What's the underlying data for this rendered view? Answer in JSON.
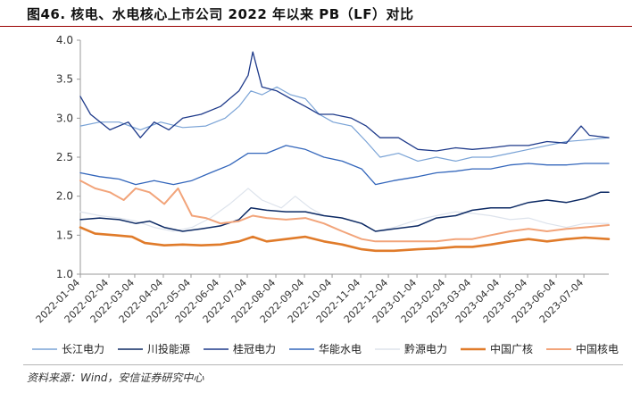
{
  "header": {
    "title": "图46. 核电、水电核心上市公司 2022 年以来 PB（LF）对比"
  },
  "footer": {
    "source": "资料来源：Wind，安信证券研究中心"
  },
  "chart_data": {
    "type": "line",
    "ylim": [
      1.0,
      4.0
    ],
    "yticks": [
      "1.0",
      "1.5",
      "2.0",
      "2.5",
      "3.0",
      "3.5",
      "4.0"
    ],
    "x_start": "2022-01-04",
    "x_end": "2023-07-31",
    "x_ticks": [
      "2022-01-04",
      "2022-02-04",
      "2022-03-04",
      "2022-04-04",
      "2022-05-04",
      "2022-06-04",
      "2022-07-04",
      "2022-08-04",
      "2022-09-04",
      "2022-10-04",
      "2022-11-04",
      "2022-12-04",
      "2023-01-04",
      "2023-02-04",
      "2023-03-04",
      "2023-04-04",
      "2023-05-04",
      "2023-06-04",
      "2023-07-04"
    ],
    "grid": false,
    "legend_position": "bottom",
    "series": [
      {
        "name": "长江电力",
        "color": "#7aa3d6",
        "width": 1.2,
        "points": [
          [
            "2022-01-04",
            2.9
          ],
          [
            "2022-01-25",
            2.95
          ],
          [
            "2022-02-15",
            2.95
          ],
          [
            "2022-03-10",
            2.85
          ],
          [
            "2022-04-01",
            2.95
          ],
          [
            "2022-04-25",
            2.88
          ],
          [
            "2022-05-20",
            2.9
          ],
          [
            "2022-06-10",
            3.0
          ],
          [
            "2022-06-25",
            3.15
          ],
          [
            "2022-07-08",
            3.35
          ],
          [
            "2022-07-20",
            3.3
          ],
          [
            "2022-08-05",
            3.4
          ],
          [
            "2022-08-20",
            3.3
          ],
          [
            "2022-09-05",
            3.25
          ],
          [
            "2022-09-20",
            3.05
          ],
          [
            "2022-10-05",
            2.95
          ],
          [
            "2022-10-25",
            2.9
          ],
          [
            "2022-11-10",
            2.7
          ],
          [
            "2022-11-25",
            2.5
          ],
          [
            "2022-12-15",
            2.55
          ],
          [
            "2023-01-05",
            2.45
          ],
          [
            "2023-01-25",
            2.5
          ],
          [
            "2023-02-15",
            2.45
          ],
          [
            "2023-03-05",
            2.5
          ],
          [
            "2023-03-25",
            2.5
          ],
          [
            "2023-04-15",
            2.55
          ],
          [
            "2023-05-05",
            2.6
          ],
          [
            "2023-05-25",
            2.65
          ],
          [
            "2023-06-15",
            2.7
          ],
          [
            "2023-07-05",
            2.72
          ],
          [
            "2023-07-31",
            2.75
          ]
        ]
      },
      {
        "name": "川投能源",
        "color": "#0d2a64",
        "width": 1.5,
        "points": [
          [
            "2022-01-04",
            1.7
          ],
          [
            "2022-01-25",
            1.72
          ],
          [
            "2022-02-15",
            1.7
          ],
          [
            "2022-03-05",
            1.65
          ],
          [
            "2022-03-20",
            1.68
          ],
          [
            "2022-04-05",
            1.6
          ],
          [
            "2022-04-25",
            1.55
          ],
          [
            "2022-05-15",
            1.58
          ],
          [
            "2022-06-05",
            1.62
          ],
          [
            "2022-06-25",
            1.7
          ],
          [
            "2022-07-08",
            1.85
          ],
          [
            "2022-07-25",
            1.82
          ],
          [
            "2022-08-15",
            1.8
          ],
          [
            "2022-09-05",
            1.8
          ],
          [
            "2022-09-25",
            1.75
          ],
          [
            "2022-10-15",
            1.72
          ],
          [
            "2022-11-05",
            1.65
          ],
          [
            "2022-11-20",
            1.55
          ],
          [
            "2022-12-10",
            1.58
          ],
          [
            "2023-01-05",
            1.62
          ],
          [
            "2023-01-25",
            1.72
          ],
          [
            "2023-02-15",
            1.75
          ],
          [
            "2023-03-05",
            1.82
          ],
          [
            "2023-03-25",
            1.85
          ],
          [
            "2023-04-15",
            1.85
          ],
          [
            "2023-05-05",
            1.92
          ],
          [
            "2023-05-25",
            1.95
          ],
          [
            "2023-06-15",
            1.92
          ],
          [
            "2023-07-05",
            1.97
          ],
          [
            "2023-07-22",
            2.05
          ],
          [
            "2023-07-31",
            2.05
          ]
        ]
      },
      {
        "name": "桂冠电力",
        "color": "#1e3a8a",
        "width": 1.3,
        "points": [
          [
            "2022-01-04",
            3.28
          ],
          [
            "2022-01-15",
            3.05
          ],
          [
            "2022-02-05",
            2.85
          ],
          [
            "2022-02-25",
            2.95
          ],
          [
            "2022-03-10",
            2.75
          ],
          [
            "2022-03-25",
            2.95
          ],
          [
            "2022-04-10",
            2.85
          ],
          [
            "2022-04-25",
            3.0
          ],
          [
            "2022-05-15",
            3.05
          ],
          [
            "2022-06-05",
            3.15
          ],
          [
            "2022-06-25",
            3.35
          ],
          [
            "2022-07-05",
            3.55
          ],
          [
            "2022-07-10",
            3.85
          ],
          [
            "2022-07-20",
            3.4
          ],
          [
            "2022-08-05",
            3.35
          ],
          [
            "2022-08-20",
            3.25
          ],
          [
            "2022-09-05",
            3.15
          ],
          [
            "2022-09-20",
            3.05
          ],
          [
            "2022-10-05",
            3.05
          ],
          [
            "2022-10-25",
            3.0
          ],
          [
            "2022-11-10",
            2.9
          ],
          [
            "2022-11-25",
            2.75
          ],
          [
            "2022-12-15",
            2.75
          ],
          [
            "2023-01-05",
            2.6
          ],
          [
            "2023-01-25",
            2.58
          ],
          [
            "2023-02-15",
            2.62
          ],
          [
            "2023-03-05",
            2.6
          ],
          [
            "2023-03-25",
            2.62
          ],
          [
            "2023-04-15",
            2.65
          ],
          [
            "2023-05-05",
            2.65
          ],
          [
            "2023-05-25",
            2.7
          ],
          [
            "2023-06-15",
            2.68
          ],
          [
            "2023-07-01",
            2.9
          ],
          [
            "2023-07-10",
            2.78
          ],
          [
            "2023-07-31",
            2.75
          ]
        ]
      },
      {
        "name": "华能水电",
        "color": "#3366bb",
        "width": 1.3,
        "points": [
          [
            "2022-01-04",
            2.3
          ],
          [
            "2022-01-25",
            2.25
          ],
          [
            "2022-02-15",
            2.22
          ],
          [
            "2022-03-05",
            2.15
          ],
          [
            "2022-03-25",
            2.2
          ],
          [
            "2022-04-15",
            2.15
          ],
          [
            "2022-05-05",
            2.2
          ],
          [
            "2022-05-25",
            2.3
          ],
          [
            "2022-06-15",
            2.4
          ],
          [
            "2022-07-05",
            2.55
          ],
          [
            "2022-07-25",
            2.55
          ],
          [
            "2022-08-15",
            2.65
          ],
          [
            "2022-09-05",
            2.6
          ],
          [
            "2022-09-25",
            2.5
          ],
          [
            "2022-10-15",
            2.45
          ],
          [
            "2022-11-05",
            2.35
          ],
          [
            "2022-11-20",
            2.15
          ],
          [
            "2022-12-10",
            2.2
          ],
          [
            "2023-01-05",
            2.25
          ],
          [
            "2023-01-25",
            2.3
          ],
          [
            "2023-02-15",
            2.32
          ],
          [
            "2023-03-05",
            2.35
          ],
          [
            "2023-03-25",
            2.35
          ],
          [
            "2023-04-15",
            2.4
          ],
          [
            "2023-05-05",
            2.42
          ],
          [
            "2023-05-25",
            2.4
          ],
          [
            "2023-06-15",
            2.4
          ],
          [
            "2023-07-05",
            2.42
          ],
          [
            "2023-07-31",
            2.42
          ]
        ]
      },
      {
        "name": "黔源电力",
        "color": "#dde3ec",
        "width": 1.2,
        "points": [
          [
            "2022-01-04",
            1.8
          ],
          [
            "2022-01-25",
            1.75
          ],
          [
            "2022-02-15",
            1.72
          ],
          [
            "2022-03-05",
            1.68
          ],
          [
            "2022-03-25",
            1.6
          ],
          [
            "2022-04-15",
            1.55
          ],
          [
            "2022-05-05",
            1.6
          ],
          [
            "2022-05-25",
            1.72
          ],
          [
            "2022-06-15",
            1.9
          ],
          [
            "2022-07-05",
            2.1
          ],
          [
            "2022-07-20",
            1.95
          ],
          [
            "2022-08-10",
            1.85
          ],
          [
            "2022-08-25",
            2.0
          ],
          [
            "2022-09-10",
            1.85
          ],
          [
            "2022-09-25",
            1.75
          ],
          [
            "2022-10-15",
            1.72
          ],
          [
            "2022-11-05",
            1.65
          ],
          [
            "2022-11-20",
            1.55
          ],
          [
            "2022-12-10",
            1.6
          ],
          [
            "2023-01-05",
            1.7
          ],
          [
            "2023-01-25",
            1.75
          ],
          [
            "2023-02-15",
            1.8
          ],
          [
            "2023-03-05",
            1.78
          ],
          [
            "2023-03-25",
            1.75
          ],
          [
            "2023-04-15",
            1.7
          ],
          [
            "2023-05-05",
            1.72
          ],
          [
            "2023-05-25",
            1.65
          ],
          [
            "2023-06-15",
            1.6
          ],
          [
            "2023-07-05",
            1.65
          ],
          [
            "2023-07-31",
            1.65
          ]
        ]
      },
      {
        "name": "中国广核",
        "color": "#e07b2a",
        "width": 2.6,
        "points": [
          [
            "2022-01-04",
            1.6
          ],
          [
            "2022-01-20",
            1.52
          ],
          [
            "2022-02-10",
            1.5
          ],
          [
            "2022-03-01",
            1.48
          ],
          [
            "2022-03-15",
            1.4
          ],
          [
            "2022-04-05",
            1.37
          ],
          [
            "2022-04-25",
            1.38
          ],
          [
            "2022-05-15",
            1.37
          ],
          [
            "2022-06-05",
            1.38
          ],
          [
            "2022-06-25",
            1.42
          ],
          [
            "2022-07-10",
            1.48
          ],
          [
            "2022-07-25",
            1.42
          ],
          [
            "2022-08-15",
            1.45
          ],
          [
            "2022-09-05",
            1.48
          ],
          [
            "2022-09-25",
            1.42
          ],
          [
            "2022-10-15",
            1.38
          ],
          [
            "2022-11-05",
            1.32
          ],
          [
            "2022-11-20",
            1.3
          ],
          [
            "2022-12-10",
            1.3
          ],
          [
            "2023-01-05",
            1.32
          ],
          [
            "2023-01-25",
            1.33
          ],
          [
            "2023-02-15",
            1.35
          ],
          [
            "2023-03-05",
            1.35
          ],
          [
            "2023-03-25",
            1.38
          ],
          [
            "2023-04-15",
            1.42
          ],
          [
            "2023-05-05",
            1.45
          ],
          [
            "2023-05-25",
            1.42
          ],
          [
            "2023-06-15",
            1.45
          ],
          [
            "2023-07-05",
            1.47
          ],
          [
            "2023-07-31",
            1.45
          ]
        ]
      },
      {
        "name": "中国核电",
        "color": "#f2a47a",
        "width": 2.0,
        "points": [
          [
            "2022-01-04",
            2.2
          ],
          [
            "2022-01-20",
            2.1
          ],
          [
            "2022-02-05",
            2.05
          ],
          [
            "2022-02-20",
            1.95
          ],
          [
            "2022-03-05",
            2.1
          ],
          [
            "2022-03-20",
            2.05
          ],
          [
            "2022-04-05",
            1.9
          ],
          [
            "2022-04-20",
            2.1
          ],
          [
            "2022-05-05",
            1.75
          ],
          [
            "2022-05-20",
            1.72
          ],
          [
            "2022-06-05",
            1.65
          ],
          [
            "2022-06-25",
            1.68
          ],
          [
            "2022-07-10",
            1.75
          ],
          [
            "2022-07-25",
            1.72
          ],
          [
            "2022-08-15",
            1.7
          ],
          [
            "2022-09-05",
            1.72
          ],
          [
            "2022-09-25",
            1.65
          ],
          [
            "2022-10-15",
            1.55
          ],
          [
            "2022-11-05",
            1.45
          ],
          [
            "2022-11-20",
            1.42
          ],
          [
            "2022-12-10",
            1.42
          ],
          [
            "2023-01-05",
            1.42
          ],
          [
            "2023-01-25",
            1.42
          ],
          [
            "2023-02-15",
            1.45
          ],
          [
            "2023-03-05",
            1.45
          ],
          [
            "2023-03-25",
            1.5
          ],
          [
            "2023-04-15",
            1.55
          ],
          [
            "2023-05-05",
            1.58
          ],
          [
            "2023-05-25",
            1.55
          ],
          [
            "2023-06-15",
            1.58
          ],
          [
            "2023-07-05",
            1.6
          ],
          [
            "2023-07-31",
            1.63
          ]
        ]
      }
    ]
  }
}
